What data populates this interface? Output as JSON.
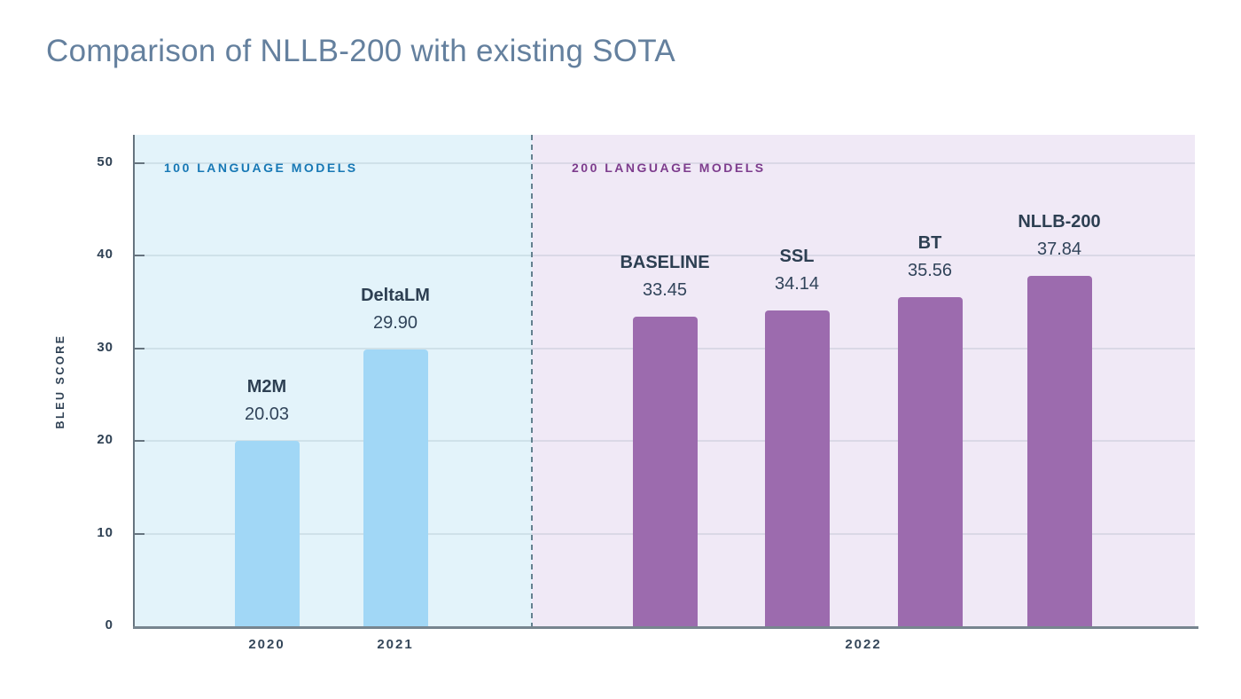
{
  "page": {
    "title": "Comparison of NLLB-200 with existing SOTA"
  },
  "chart_data": {
    "type": "bar",
    "title": "Comparison of NLLB-200 with existing SOTA",
    "xlabel": "",
    "ylabel": "BLEU SCORE",
    "ylim": [
      0,
      53
    ],
    "yticks": [
      0,
      10,
      20,
      30,
      40,
      50
    ],
    "grid": true,
    "legend_position": "none",
    "regions": [
      {
        "label": "100 LANGUAGE MODELS",
        "text_color": "#1778b5",
        "bg_color": "#e3f3fa",
        "bar_color": "#a1d7f6"
      },
      {
        "label": "200 LANGUAGE MODELS",
        "text_color": "#7d3c8d",
        "bg_color": "#f0e9f6",
        "bar_color": "#9c6bae"
      }
    ],
    "bars": [
      {
        "name": "M2M",
        "value": 20.03,
        "value_label": "20.03",
        "region": 0,
        "year": "2020"
      },
      {
        "name": "DeltaLM",
        "value": 29.9,
        "value_label": "29.90",
        "region": 0,
        "year": "2021"
      },
      {
        "name": "BASELINE",
        "value": 33.45,
        "value_label": "33.45",
        "region": 1,
        "year": "2022"
      },
      {
        "name": "SSL",
        "value": 34.14,
        "value_label": "34.14",
        "region": 1,
        "year": "2022"
      },
      {
        "name": "BT",
        "value": 35.56,
        "value_label": "35.56",
        "region": 1,
        "year": "2022"
      },
      {
        "name": "NLLB-200",
        "value": 37.84,
        "value_label": "37.84",
        "region": 1,
        "year": "2022"
      }
    ],
    "x_tick_labels": [
      "2020",
      "2021",
      "2022"
    ]
  }
}
